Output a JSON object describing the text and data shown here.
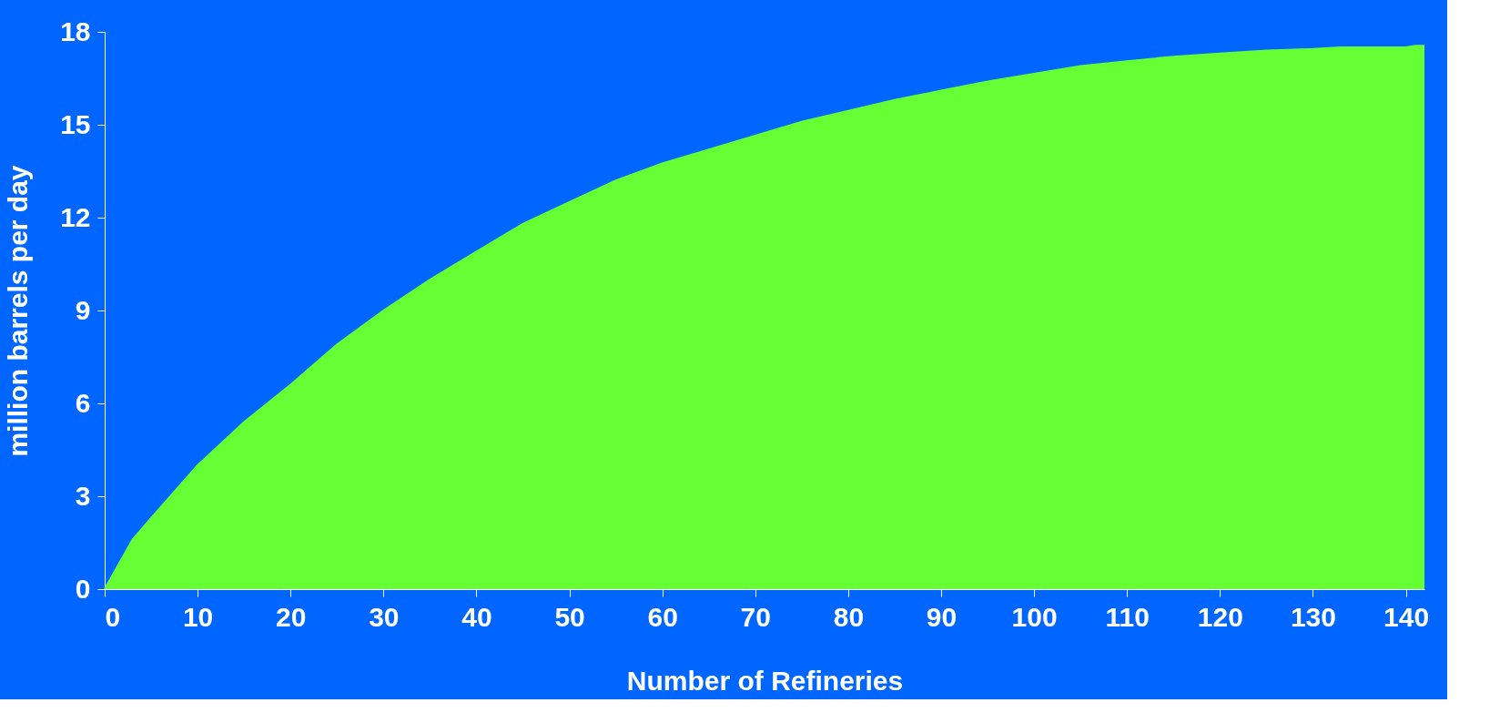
{
  "chart_data": {
    "type": "area",
    "xlabel": "Number of Refineries",
    "ylabel": "million barrels per day",
    "x": [
      0,
      3,
      5,
      10,
      15,
      20,
      25,
      30,
      35,
      40,
      45,
      50,
      55,
      60,
      65,
      70,
      75,
      80,
      85,
      90,
      95,
      100,
      105,
      110,
      115,
      120,
      125,
      130,
      133,
      140,
      141,
      142
    ],
    "series": [
      {
        "color": "#66ff33",
        "values": [
          0,
          1.6,
          2.3,
          4.0,
          5.4,
          6.6,
          7.9,
          9.0,
          10.0,
          10.9,
          11.8,
          12.5,
          13.2,
          13.75,
          14.2,
          14.65,
          15.1,
          15.45,
          15.8,
          16.1,
          16.4,
          16.65,
          16.9,
          17.05,
          17.2,
          17.3,
          17.4,
          17.45,
          17.5,
          17.5,
          17.55,
          17.55
        ]
      }
    ],
    "xlim": [
      0,
      142
    ],
    "xticks": [
      0,
      10,
      20,
      30,
      40,
      50,
      60,
      70,
      80,
      90,
      100,
      110,
      120,
      130,
      140
    ],
    "ylim": [
      0,
      18
    ],
    "yticks": [
      0,
      3,
      6,
      9,
      12,
      15,
      18
    ],
    "grid": false,
    "legend": false
  }
}
